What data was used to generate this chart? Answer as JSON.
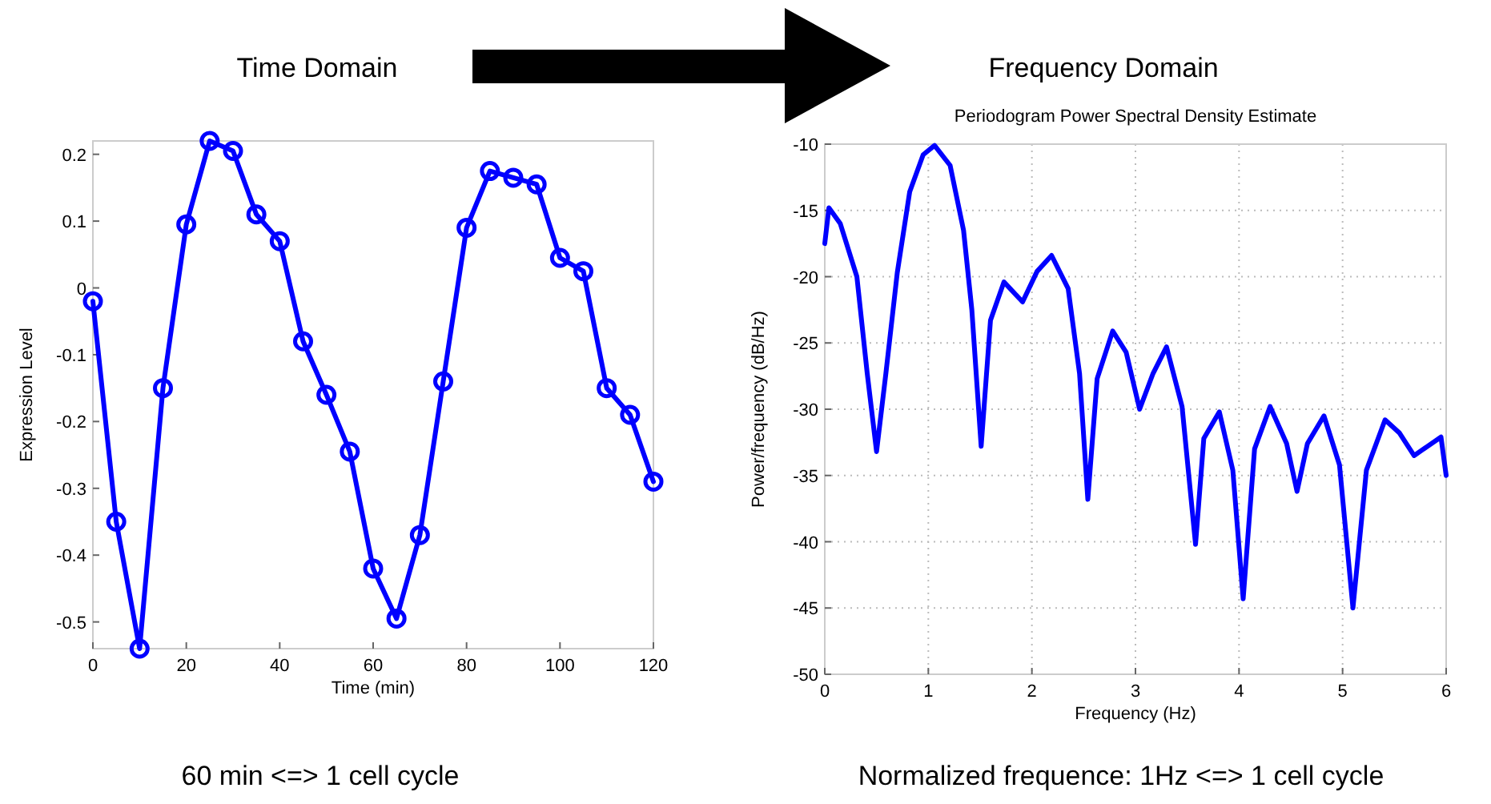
{
  "chart_data": [
    {
      "type": "line",
      "title": "Time Domain",
      "xlabel": "Time (min)",
      "ylabel": "Expression Level",
      "annotations": [
        "60 min <=> 1 cell cycle"
      ],
      "x": [
        0,
        5,
        10,
        15,
        20,
        25,
        30,
        35,
        40,
        45,
        50,
        55,
        60,
        65,
        70,
        75,
        80,
        85,
        90,
        95,
        100,
        105,
        110,
        115,
        120
      ],
      "series": [
        {
          "color": "#0000ff",
          "values": [
            -0.02,
            -0.35,
            -0.54,
            -0.15,
            0.095,
            0.22,
            0.205,
            0.11,
            0.07,
            -0.08,
            -0.16,
            -0.245,
            -0.42,
            -0.495,
            -0.37,
            -0.14,
            0.09,
            0.175,
            0.165,
            0.155,
            0.045,
            0.025,
            -0.15,
            -0.19,
            -0.29
          ]
        }
      ],
      "xlim": [
        0,
        120
      ],
      "xticks": [
        0,
        20,
        40,
        60,
        80,
        100,
        120
      ],
      "ylim": [
        -0.54,
        0.22
      ],
      "yticks": [
        -0.5,
        -0.4,
        -0.3,
        -0.2,
        -0.1,
        0,
        0.1,
        0.2
      ],
      "grid": false,
      "marker": "circle",
      "line_style": "solid"
    },
    {
      "type": "line",
      "title": "Periodogram Power Spectral Density Estimate",
      "subtitle": "Frequency Domain",
      "xlabel": "Frequency (Hz)",
      "ylabel": "Power/frequency (dB/Hz)",
      "annotations": [
        "Normalized frequence: 1Hz <=> 1 cell cycle"
      ],
      "x": [
        0,
        0.04,
        0.15,
        0.31,
        0.41,
        0.5,
        0.59,
        0.7,
        0.82,
        0.95,
        1.06,
        1.21,
        1.34,
        1.42,
        1.51,
        1.6,
        1.73,
        1.91,
        2.05,
        2.19,
        2.35,
        2.46,
        2.54,
        2.63,
        2.78,
        2.91,
        3.04,
        3.17,
        3.3,
        3.45,
        3.58,
        3.66,
        3.81,
        3.94,
        4.04,
        4.15,
        4.3,
        4.46,
        4.56,
        4.66,
        4.82,
        4.97,
        5.1,
        5.23,
        5.41,
        5.55,
        5.69,
        5.95,
        6
      ],
      "series": [
        {
          "color": "#0000ff",
          "values": [
            -17.5,
            -14.8,
            -16,
            -20,
            -27.3,
            -33.2,
            -27.3,
            -19.7,
            -13.6,
            -10.8,
            -10.1,
            -11.6,
            -16.5,
            -22.5,
            -32.8,
            -23.3,
            -20.4,
            -21.9,
            -19.6,
            -18.4,
            -20.9,
            -27.3,
            -36.8,
            -27.7,
            -24.1,
            -25.7,
            -30,
            -27.3,
            -25.3,
            -29.8,
            -40.2,
            -32.2,
            -30.2,
            -34.6,
            -44.3,
            -33,
            -29.8,
            -32.6,
            -36.2,
            -32.6,
            -30.5,
            -34.2,
            -45,
            -34.6,
            -30.8,
            -31.8,
            -33.5,
            -32.1,
            -35
          ]
        }
      ],
      "xlim": [
        0,
        6
      ],
      "xticks": [
        0,
        1,
        2,
        3,
        4,
        5,
        6
      ],
      "ylim": [
        -50,
        -10
      ],
      "yticks": [
        -50,
        -45,
        -40,
        -35,
        -30,
        -25,
        -20,
        -15,
        -10
      ],
      "grid": true,
      "marker": "none",
      "line_style": "solid"
    }
  ]
}
